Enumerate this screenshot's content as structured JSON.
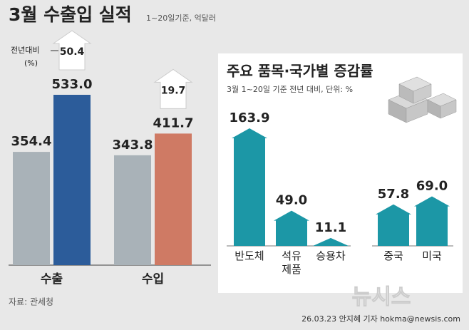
{
  "header": {
    "title": "3월 수출입 실적",
    "subtitle": "1~20일기준, 억달러"
  },
  "chart_data": [
    {
      "type": "bar",
      "categories": [
        "수출",
        "수입"
      ],
      "series": [
        {
          "color": "#a9b2b8",
          "values": [
            354.4,
            343.8
          ],
          "value_labels": [
            "354.4",
            "343.8"
          ]
        },
        {
          "colors": [
            "#2c5c9a",
            "#cf7a64"
          ],
          "values": [
            533.0,
            411.7
          ],
          "value_labels": [
            "533.0",
            "411.7"
          ]
        }
      ],
      "change": {
        "label": "전년대비",
        "unit": "(%)",
        "values": [
          50.4,
          19.7
        ]
      }
    },
    {
      "type": "arrow-bar",
      "title": "주요 품목·국가별 증감률",
      "subtitle": "3월 1~20일 기준 전년 대비, 단위: %",
      "categories": [
        "반도체",
        "석유\n제품",
        "승용차",
        "중국",
        "미국"
      ],
      "values": [
        163.9,
        49.0,
        11.1,
        57.8,
        69.0
      ],
      "value_labels": [
        "163.9",
        "49.0",
        "11.1",
        "57.8",
        "69.0"
      ],
      "color": "#1c97a6"
    }
  ],
  "footer": {
    "source": "자료: 관세청",
    "credit": "26.03.23 안지혜 기자 hokma@newsis.com",
    "watermark": "뉴시스"
  }
}
